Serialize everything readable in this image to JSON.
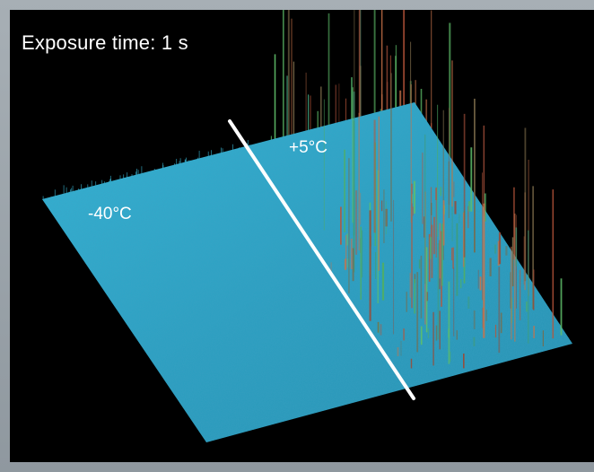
{
  "figure": {
    "exposure_label": "Exposure time: 1 s",
    "warm_label": "+5°C",
    "cold_label": "-40°C"
  },
  "colors": {
    "background": "#000000",
    "surface": "#2aa7c6",
    "divider": "#ffffff",
    "frame": "#9aa3aa",
    "spike_warm": "#c45a3a",
    "spike_green": "#5fbf6a"
  }
}
